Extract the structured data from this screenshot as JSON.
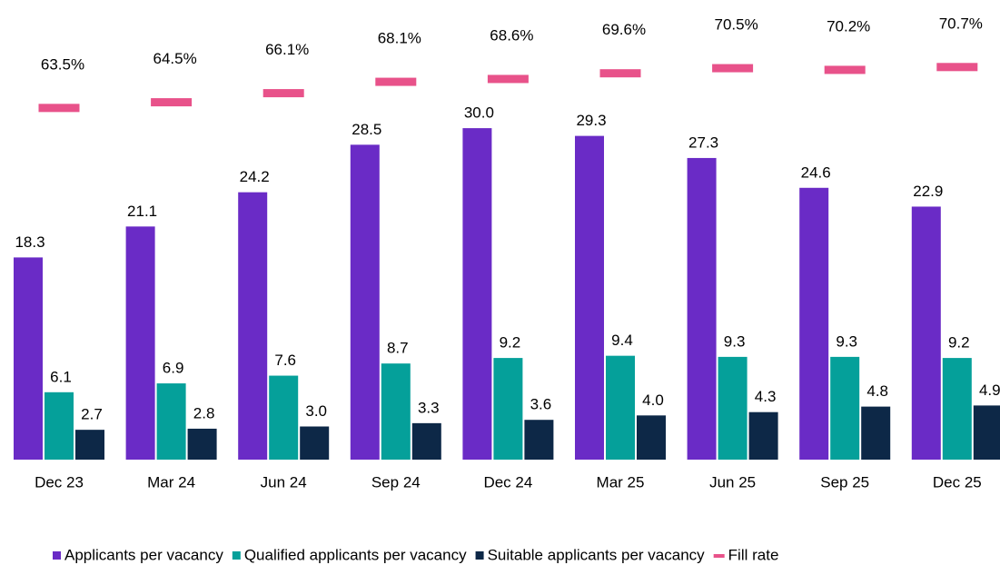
{
  "chart_data": {
    "type": "bar",
    "categories": [
      "Dec 23",
      "Mar 24",
      "Jun 24",
      "Sep 24",
      "Dec 24",
      "Mar 25",
      "Jun 25",
      "Sep 25",
      "Dec 25"
    ],
    "ylim": [
      0,
      41.6
    ],
    "y2lim": [
      1.6,
      82.5
    ],
    "legend": "bottom",
    "series": [
      {
        "name": "Applicants per vacancy",
        "color": "#6a2bc6",
        "values": [
          18.3,
          21.1,
          24.2,
          28.5,
          30.0,
          29.3,
          27.3,
          24.6,
          22.9
        ],
        "value_labels": [
          "18.3",
          "21.1",
          "24.2",
          "28.5",
          "30.0",
          "29.3",
          "27.3",
          "24.6",
          "22.9"
        ]
      },
      {
        "name": "Qualified applicants per vacancy",
        "color": "#05a09a",
        "values": [
          6.1,
          6.9,
          7.6,
          8.7,
          9.2,
          9.4,
          9.3,
          9.3,
          9.2
        ],
        "value_labels": [
          "6.1",
          "6.9",
          "7.6",
          "8.7",
          "9.2",
          "9.4",
          "9.3",
          "9.3",
          "9.2"
        ]
      },
      {
        "name": "Suitable applicants per vacancy",
        "color": "#0d2847",
        "values": [
          2.7,
          2.8,
          3.0,
          3.3,
          3.6,
          4.0,
          4.3,
          4.8,
          4.9
        ],
        "value_labels": [
          "2.7",
          "2.8",
          "3.0",
          "3.3",
          "3.6",
          "4.0",
          "4.3",
          "4.8",
          "4.9"
        ]
      },
      {
        "name": "Fill rate",
        "color": "#e8528a",
        "type": "dash",
        "axis": "y2",
        "values": [
          63.5,
          64.5,
          66.1,
          68.1,
          68.6,
          69.6,
          70.5,
          70.2,
          70.7
        ],
        "value_labels": [
          "63.5%",
          "64.5%",
          "66.1%",
          "68.1%",
          "68.6%",
          "69.6%",
          "70.5%",
          "70.2%",
          "70.7%"
        ]
      }
    ]
  }
}
